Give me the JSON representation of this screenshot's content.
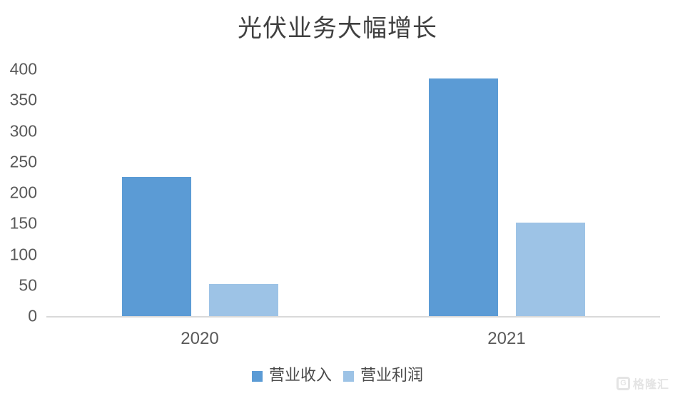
{
  "title": "光伏业务大幅增长",
  "watermark": {
    "logo": "G",
    "text": "格隆汇"
  },
  "chart_data": {
    "type": "bar",
    "title": "光伏业务大幅增长",
    "categories": [
      "2020",
      "2021"
    ],
    "series": [
      {
        "name": "营业收入",
        "color": "#5B9BD5",
        "values": [
          226,
          385
        ]
      },
      {
        "name": "营业利润",
        "color": "#9DC3E6",
        "values": [
          52,
          152
        ]
      }
    ],
    "xlabel": "",
    "ylabel": "",
    "ylim": [
      0,
      400
    ],
    "ytick_step": 50,
    "yticks": [
      0,
      50,
      100,
      150,
      200,
      250,
      300,
      350,
      400
    ],
    "grid": false,
    "legend_position": "bottom",
    "axis_line_color": "#D9D9D9",
    "text_color": "#595959",
    "title_color": "#404040"
  }
}
